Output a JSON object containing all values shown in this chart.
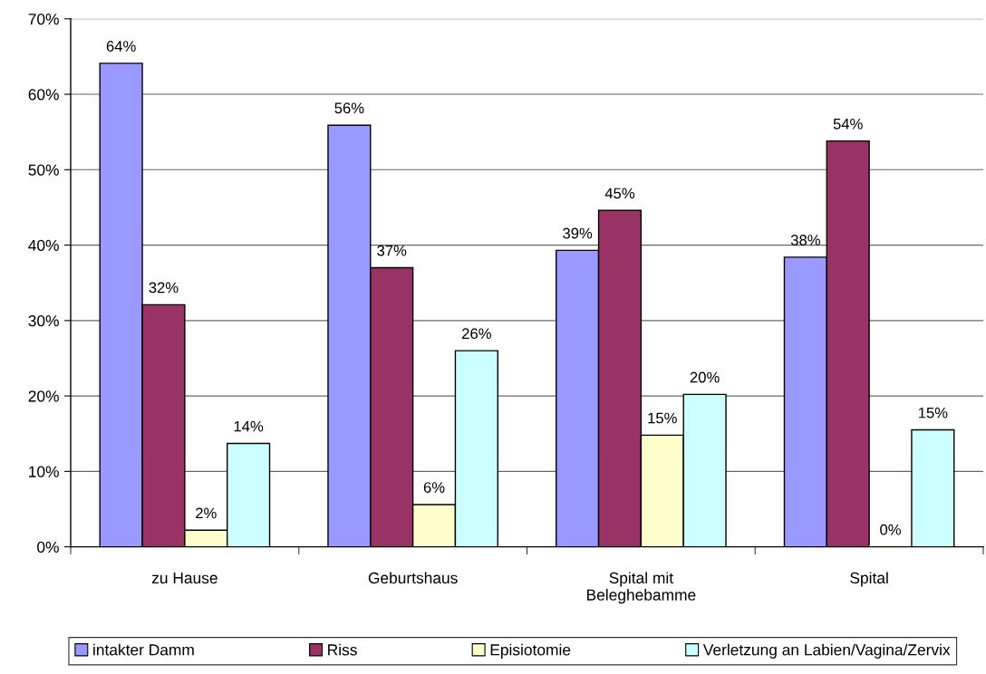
{
  "chart_data": {
    "type": "bar",
    "categories": [
      "zu Hause",
      "Geburtshaus",
      "Spital mit\nBeleghebamme",
      "Spital"
    ],
    "series": [
      {
        "name": "intakter Damm",
        "color": "#9999ff",
        "values": [
          64.1,
          55.9,
          39.3,
          38.4
        ],
        "value_labels": [
          "64%",
          "56%",
          "39%",
          "38%"
        ]
      },
      {
        "name": "Riss",
        "color": "#993366",
        "values": [
          32.1,
          37.0,
          44.6,
          53.8
        ],
        "value_labels": [
          "32%",
          "37%",
          "45%",
          "54%"
        ]
      },
      {
        "name": "Episiotomie",
        "color": "#ffffcc",
        "values": [
          2.2,
          5.6,
          14.8,
          0
        ],
        "value_labels": [
          "2%",
          "6%",
          "15%",
          "0%"
        ]
      },
      {
        "name": "Verletzung an Labien/Vagina/Zervix",
        "color": "#ccffff",
        "values": [
          13.7,
          26.0,
          20.2,
          15.5
        ],
        "value_labels": [
          "14%",
          "26%",
          "20%",
          "15%"
        ]
      }
    ],
    "ylim": [
      0,
      70
    ],
    "yticks": [
      {
        "value": 0,
        "label": "0%"
      },
      {
        "value": 10,
        "label": "10%"
      },
      {
        "value": 20,
        "label": "20%"
      },
      {
        "value": 30,
        "label": "30%"
      },
      {
        "value": 40,
        "label": "40%"
      },
      {
        "value": 50,
        "label": "50%"
      },
      {
        "value": 60,
        "label": "60%"
      },
      {
        "value": 70,
        "label": "70%"
      }
    ],
    "grid": "y",
    "legend": "bottom"
  }
}
